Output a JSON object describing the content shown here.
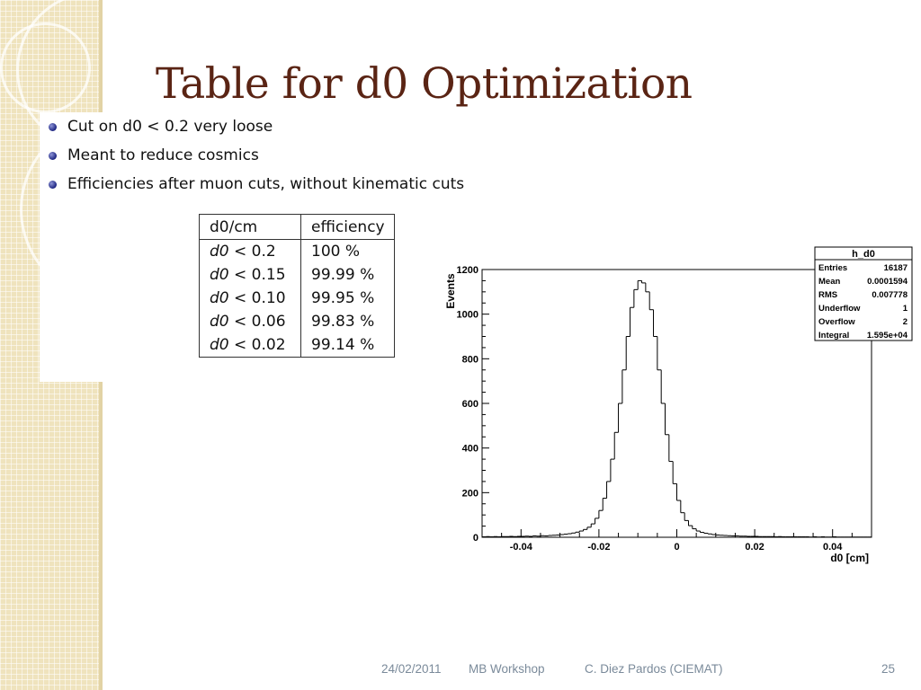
{
  "slide": {
    "title": "Table for d0 Optimization",
    "bullets": [
      "Cut on d0 < 0.2 very loose",
      "Meant to reduce cosmics",
      "Efficiencies after muon cuts, without kinematic cuts"
    ],
    "table": {
      "header": [
        "d0/cm",
        "efficiency"
      ],
      "rows": [
        {
          "cut_var": "d0",
          "cut_op": " < ",
          "cut_val": "0.2",
          "eff": "100",
          "unit": "%"
        },
        {
          "cut_var": "d0",
          "cut_op": " < ",
          "cut_val": "0.15",
          "eff": "99.99",
          "unit": "%"
        },
        {
          "cut_var": "d0",
          "cut_op": " < ",
          "cut_val": "0.10",
          "eff": "99.95",
          "unit": "%"
        },
        {
          "cut_var": "d0",
          "cut_op": " < ",
          "cut_val": "0.06",
          "eff": "99.83",
          "unit": "%"
        },
        {
          "cut_var": "d0",
          "cut_op": " < ",
          "cut_val": "0.02",
          "eff": "99.14",
          "unit": "%"
        }
      ]
    },
    "footer": {
      "date": "24/02/2011",
      "event": "MB Workshop",
      "author": "C. Diez Pardos (CIEMAT)",
      "page": "25"
    }
  },
  "colors": {
    "title": "#5a2414",
    "sidebar": "#efe3bd",
    "bullet": "#1c2480",
    "footer_text": "#7a8a9a"
  },
  "chart_data": {
    "type": "bar",
    "subtype": "histogram",
    "xlabel": "d0 [cm]",
    "ylabel": "Events",
    "xlim": [
      -0.05,
      0.05
    ],
    "ylim": [
      0,
      1200
    ],
    "x_ticks": [
      -0.04,
      -0.02,
      0,
      0.02,
      0.04
    ],
    "x_tick_labels": [
      "-0.04",
      "-0.02",
      "0",
      "0.02",
      "0.04"
    ],
    "y_ticks": [
      0,
      200,
      400,
      600,
      800,
      1000,
      1200
    ],
    "y_tick_labels": [
      "0",
      "200",
      "400",
      "600",
      "800",
      "1000",
      "1200"
    ],
    "grid": false,
    "stats_box": {
      "title": "h_d0",
      "placement": "top-right",
      "entries": [
        {
          "label": "Entries",
          "value": "16187"
        },
        {
          "label": "Mean",
          "value": "0.0001594"
        },
        {
          "label": "RMS",
          "value": "0.007778"
        },
        {
          "label": "Underflow",
          "value": "1"
        },
        {
          "label": "Overflow",
          "value": "2"
        },
        {
          "label": "Integral",
          "value": "1.595e+04"
        }
      ]
    },
    "bins": {
      "low": -0.05,
      "width": 0.001,
      "values": [
        2,
        3,
        2,
        3,
        2,
        3,
        3,
        4,
        3,
        4,
        4,
        5,
        4,
        6,
        5,
        7,
        6,
        8,
        9,
        10,
        12,
        14,
        16,
        19,
        23,
        28,
        35,
        45,
        60,
        85,
        120,
        175,
        250,
        350,
        470,
        600,
        750,
        900,
        1030,
        1110,
        1150,
        1140,
        1100,
        1020,
        900,
        750,
        600,
        460,
        340,
        240,
        165,
        110,
        75,
        52,
        38,
        28,
        22,
        18,
        15,
        12,
        10,
        9,
        8,
        7,
        6,
        6,
        5,
        5,
        4,
        4,
        4,
        3,
        3,
        3,
        3,
        2,
        3,
        2,
        2,
        2,
        2,
        2,
        2,
        2,
        1,
        2,
        1,
        2,
        1,
        1,
        2,
        1,
        1,
        1,
        1,
        1,
        1,
        1,
        1,
        1
      ]
    }
  }
}
